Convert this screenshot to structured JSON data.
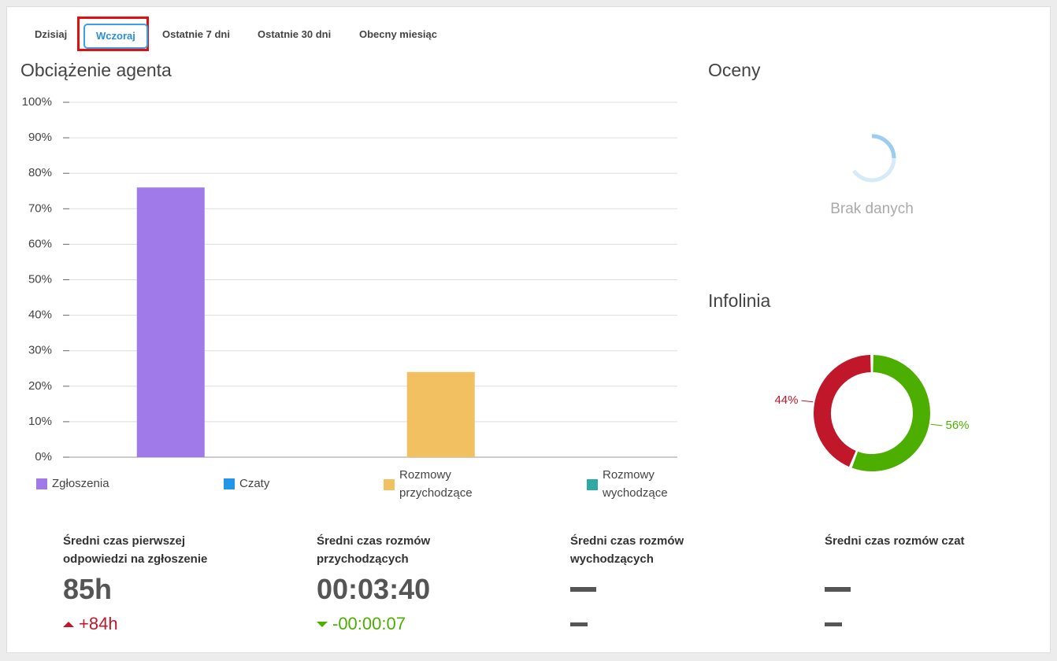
{
  "tabs": {
    "items": [
      "Dzisiaj",
      "Wczoraj",
      "Ostatnie 7 dni",
      "Ostatnie 30 dni",
      "Obecny miesiąc"
    ],
    "selected": 1
  },
  "chart_data": [
    {
      "type": "bar",
      "title": "Obciążenie agenta",
      "categories": [
        "Zgłoszenia",
        "Czaty",
        "Rozmowy przychodzące",
        "Rozmowy wychodzące"
      ],
      "values": [
        76,
        0,
        24,
        0
      ],
      "colors": [
        "#9f7ae8",
        "#2196e8",
        "#f2c060",
        "#2eaaa4"
      ],
      "ylim": [
        0,
        100
      ],
      "yticks": [
        {
          "value": 0,
          "label": "0%"
        },
        {
          "value": 10,
          "label": "10%"
        },
        {
          "value": 20,
          "label": "20%"
        },
        {
          "value": 30,
          "label": "30%"
        },
        {
          "value": 40,
          "label": "40%"
        },
        {
          "value": 50,
          "label": "50%"
        },
        {
          "value": 60,
          "label": "60%"
        },
        {
          "value": 70,
          "label": "70%"
        },
        {
          "value": 80,
          "label": "80%"
        },
        {
          "value": 90,
          "label": "90%"
        },
        {
          "value": 100,
          "label": "100%"
        }
      ],
      "grid": true
    },
    {
      "type": "pie",
      "title": "Infolinia",
      "values": [
        44,
        56
      ],
      "value_labels": [
        "44%",
        "56%"
      ],
      "colors": [
        "#c0172a",
        "#4caf00"
      ]
    }
  ],
  "ratings": {
    "title": "Oceny",
    "empty": "Brak danych"
  },
  "stats": [
    {
      "label": "Średni czas pierwszej odpowiedzi na zgłoszenie",
      "value": "85h",
      "delta": "+84h",
      "trend": "up"
    },
    {
      "label": "Średni czas rozmów przychodzących",
      "value": "00:03:40",
      "delta": "-00:00:07",
      "trend": "down"
    },
    {
      "label": "Średni czas rozmów wychodzących"
    },
    {
      "label": "Średni czas rozmów czat"
    }
  ]
}
